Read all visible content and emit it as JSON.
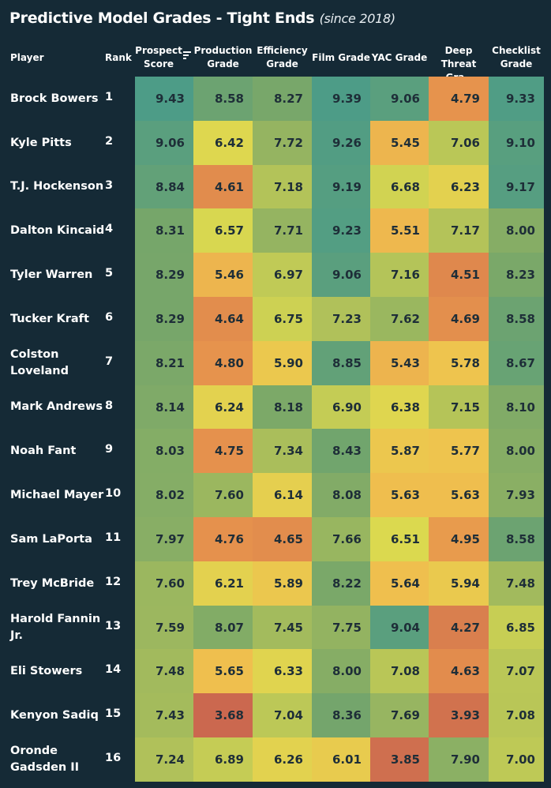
{
  "title": "Predictive Model Grades - Tight Ends",
  "subtitle": "(since 2018)",
  "headers": {
    "player": "Player",
    "rank": "Rank",
    "prospect": [
      "Prospect",
      "Score"
    ],
    "production": [
      "Production",
      "Grade"
    ],
    "efficiency": [
      "Efficiency",
      "Grade"
    ],
    "film": "Film Grade",
    "yac": "YAC Grade",
    "deep": [
      "Deep",
      "Threat Gra.."
    ],
    "checklist": [
      "Checklist",
      "Grade"
    ]
  },
  "icons": {
    "sort": "sort-descending-icon"
  },
  "chart_data": {
    "type": "table",
    "columns": [
      "Prospect Score",
      "Production Grade",
      "Efficiency Grade",
      "Film Grade",
      "YAC Grade",
      "Deep Threat Gra..",
      "Checklist Grade"
    ],
    "rows": [
      {
        "player": [
          "Brock Bowers"
        ],
        "rank": "1",
        "values": [
          "9.43",
          "8.58",
          "8.27",
          "9.39",
          "9.06",
          "4.79",
          "9.33"
        ]
      },
      {
        "player": [
          "Kyle Pitts"
        ],
        "rank": "2",
        "values": [
          "9.06",
          "6.42",
          "7.72",
          "9.26",
          "5.45",
          "7.06",
          "9.10"
        ]
      },
      {
        "player": [
          "T.J. Hockenson"
        ],
        "rank": "3",
        "values": [
          "8.84",
          "4.61",
          "7.18",
          "9.19",
          "6.68",
          "6.23",
          "9.17"
        ]
      },
      {
        "player": [
          "Dalton Kincaid"
        ],
        "rank": "4",
        "values": [
          "8.31",
          "6.57",
          "7.71",
          "9.23",
          "5.51",
          "7.17",
          "8.00"
        ]
      },
      {
        "player": [
          "Tyler Warren"
        ],
        "rank": "5",
        "values": [
          "8.29",
          "5.46",
          "6.97",
          "9.06",
          "7.16",
          "4.51",
          "8.23"
        ]
      },
      {
        "player": [
          "Tucker Kraft"
        ],
        "rank": "6",
        "values": [
          "8.29",
          "4.64",
          "6.75",
          "7.23",
          "7.62",
          "4.69",
          "8.58"
        ]
      },
      {
        "player": [
          "Colston",
          "Loveland"
        ],
        "rank": "7",
        "values": [
          "8.21",
          "4.80",
          "5.90",
          "8.85",
          "5.43",
          "5.78",
          "8.67"
        ]
      },
      {
        "player": [
          "Mark Andrews"
        ],
        "rank": "8",
        "values": [
          "8.14",
          "6.24",
          "8.18",
          "6.90",
          "6.38",
          "7.15",
          "8.10"
        ]
      },
      {
        "player": [
          "Noah Fant"
        ],
        "rank": "9",
        "values": [
          "8.03",
          "4.75",
          "7.34",
          "8.43",
          "5.87",
          "5.77",
          "8.00"
        ]
      },
      {
        "player": [
          "Michael Mayer"
        ],
        "rank": "10",
        "values": [
          "8.02",
          "7.60",
          "6.14",
          "8.08",
          "5.63",
          "5.63",
          "7.93"
        ]
      },
      {
        "player": [
          "Sam LaPorta"
        ],
        "rank": "11",
        "values": [
          "7.97",
          "4.76",
          "4.65",
          "7.66",
          "6.51",
          "4.95",
          "8.58"
        ]
      },
      {
        "player": [
          "Trey McBride"
        ],
        "rank": "12",
        "values": [
          "7.60",
          "6.21",
          "5.89",
          "8.22",
          "5.64",
          "5.94",
          "7.48"
        ]
      },
      {
        "player": [
          "Harold Fannin",
          "Jr."
        ],
        "rank": "13",
        "values": [
          "7.59",
          "8.07",
          "7.45",
          "7.75",
          "9.04",
          "4.27",
          "6.85"
        ]
      },
      {
        "player": [
          "Eli Stowers"
        ],
        "rank": "14",
        "values": [
          "7.48",
          "5.65",
          "6.33",
          "8.00",
          "7.08",
          "4.63",
          "7.07"
        ]
      },
      {
        "player": [
          "Kenyon Sadiq"
        ],
        "rank": "15",
        "values": [
          "7.43",
          "3.68",
          "7.04",
          "8.36",
          "7.69",
          "3.93",
          "7.08"
        ]
      },
      {
        "player": [
          "Oronde",
          "Gadsden II"
        ],
        "rank": "16",
        "values": [
          "7.24",
          "6.89",
          "6.26",
          "6.01",
          "3.85",
          "7.90",
          "7.00"
        ]
      }
    ],
    "color_scale": {
      "type": "diverging",
      "stops": [
        {
          "value": 3.6,
          "color": "#c9654f"
        },
        {
          "value": 4.8,
          "color": "#e6934d"
        },
        {
          "value": 5.7,
          "color": "#f0c24e"
        },
        {
          "value": 6.5,
          "color": "#dcd94f"
        },
        {
          "value": 7.4,
          "color": "#a6bc5c"
        },
        {
          "value": 8.3,
          "color": "#76a66a"
        },
        {
          "value": 9.4,
          "color": "#4d9c87"
        }
      ]
    }
  }
}
